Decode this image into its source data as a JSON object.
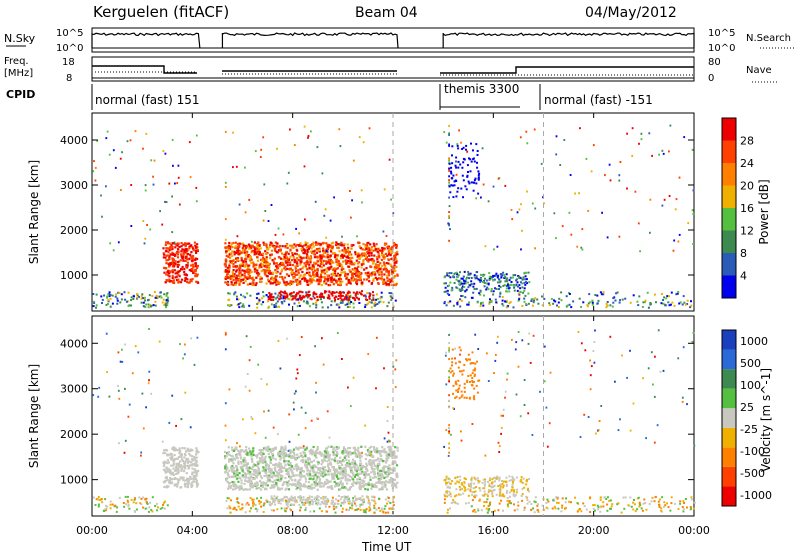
{
  "header": {
    "title": "Kerguelen (fitACF)",
    "beam": "Beam 04",
    "date": "04/May/2012"
  },
  "panel_nsky": {
    "left_label": "N.Sky",
    "left_ticks": [
      "10^5",
      "10^0"
    ],
    "right_ticks": [
      "10^5",
      "10^0"
    ],
    "right_label": "N.Search"
  },
  "panel_freq": {
    "left_label_1": "Freq.",
    "left_label_2": "[MHz]",
    "left_ticks": [
      "18",
      "8"
    ],
    "right_ticks": [
      "80",
      "0"
    ],
    "right_label": "Nave"
  },
  "panel_cpid": {
    "label": "CPID",
    "modes": [
      {
        "name": "normal (fast) 151"
      },
      {
        "name": "themis 3300"
      },
      {
        "name": "normal (fast) -151"
      }
    ]
  },
  "chart_data": [
    {
      "type": "heatmap",
      "name": "power",
      "ylabel": "Slant Range [km]",
      "y_ticks": [
        "1000",
        "2000",
        "3000",
        "4000"
      ],
      "ylim": [
        200,
        4600
      ],
      "colorbar_label": "Power [dB]",
      "colorbar_ticks": [
        "4",
        "8",
        "12",
        "16",
        "20",
        "24",
        "28"
      ],
      "colorbar_colors": [
        "#0000ee",
        "#2a5bb8",
        "#3c8a50",
        "#55c040",
        "#f0b000",
        "#ff8000",
        "#ff4000",
        "#ee0000"
      ]
    },
    {
      "type": "heatmap",
      "name": "velocity",
      "ylabel": "Slant Range [km]",
      "y_ticks": [
        "1000",
        "2000",
        "3000",
        "4000"
      ],
      "ylim": [
        200,
        4600
      ],
      "colorbar_label": "Velocity [m s^-1]",
      "colorbar_ticks": [
        "1000",
        "500",
        "100",
        "25",
        "-25",
        "-100",
        "-500",
        "-1000"
      ],
      "colorbar_colors": [
        "#1a3fbf",
        "#2a6ad8",
        "#3c8a50",
        "#55c040",
        "#c8c8c0",
        "#f0b000",
        "#ff8000",
        "#ff4000",
        "#ee0000"
      ]
    }
  ],
  "time_axis": {
    "xlabel": "Time UT",
    "ticks": [
      "00:00",
      "04:00",
      "08:00",
      "12:00",
      "16:00",
      "20:00",
      "00:00"
    ]
  },
  "data_blocks_hours": [
    [
      0,
      4.3
    ],
    [
      5.2,
      12.2
    ],
    [
      14.0,
      24.0
    ]
  ]
}
